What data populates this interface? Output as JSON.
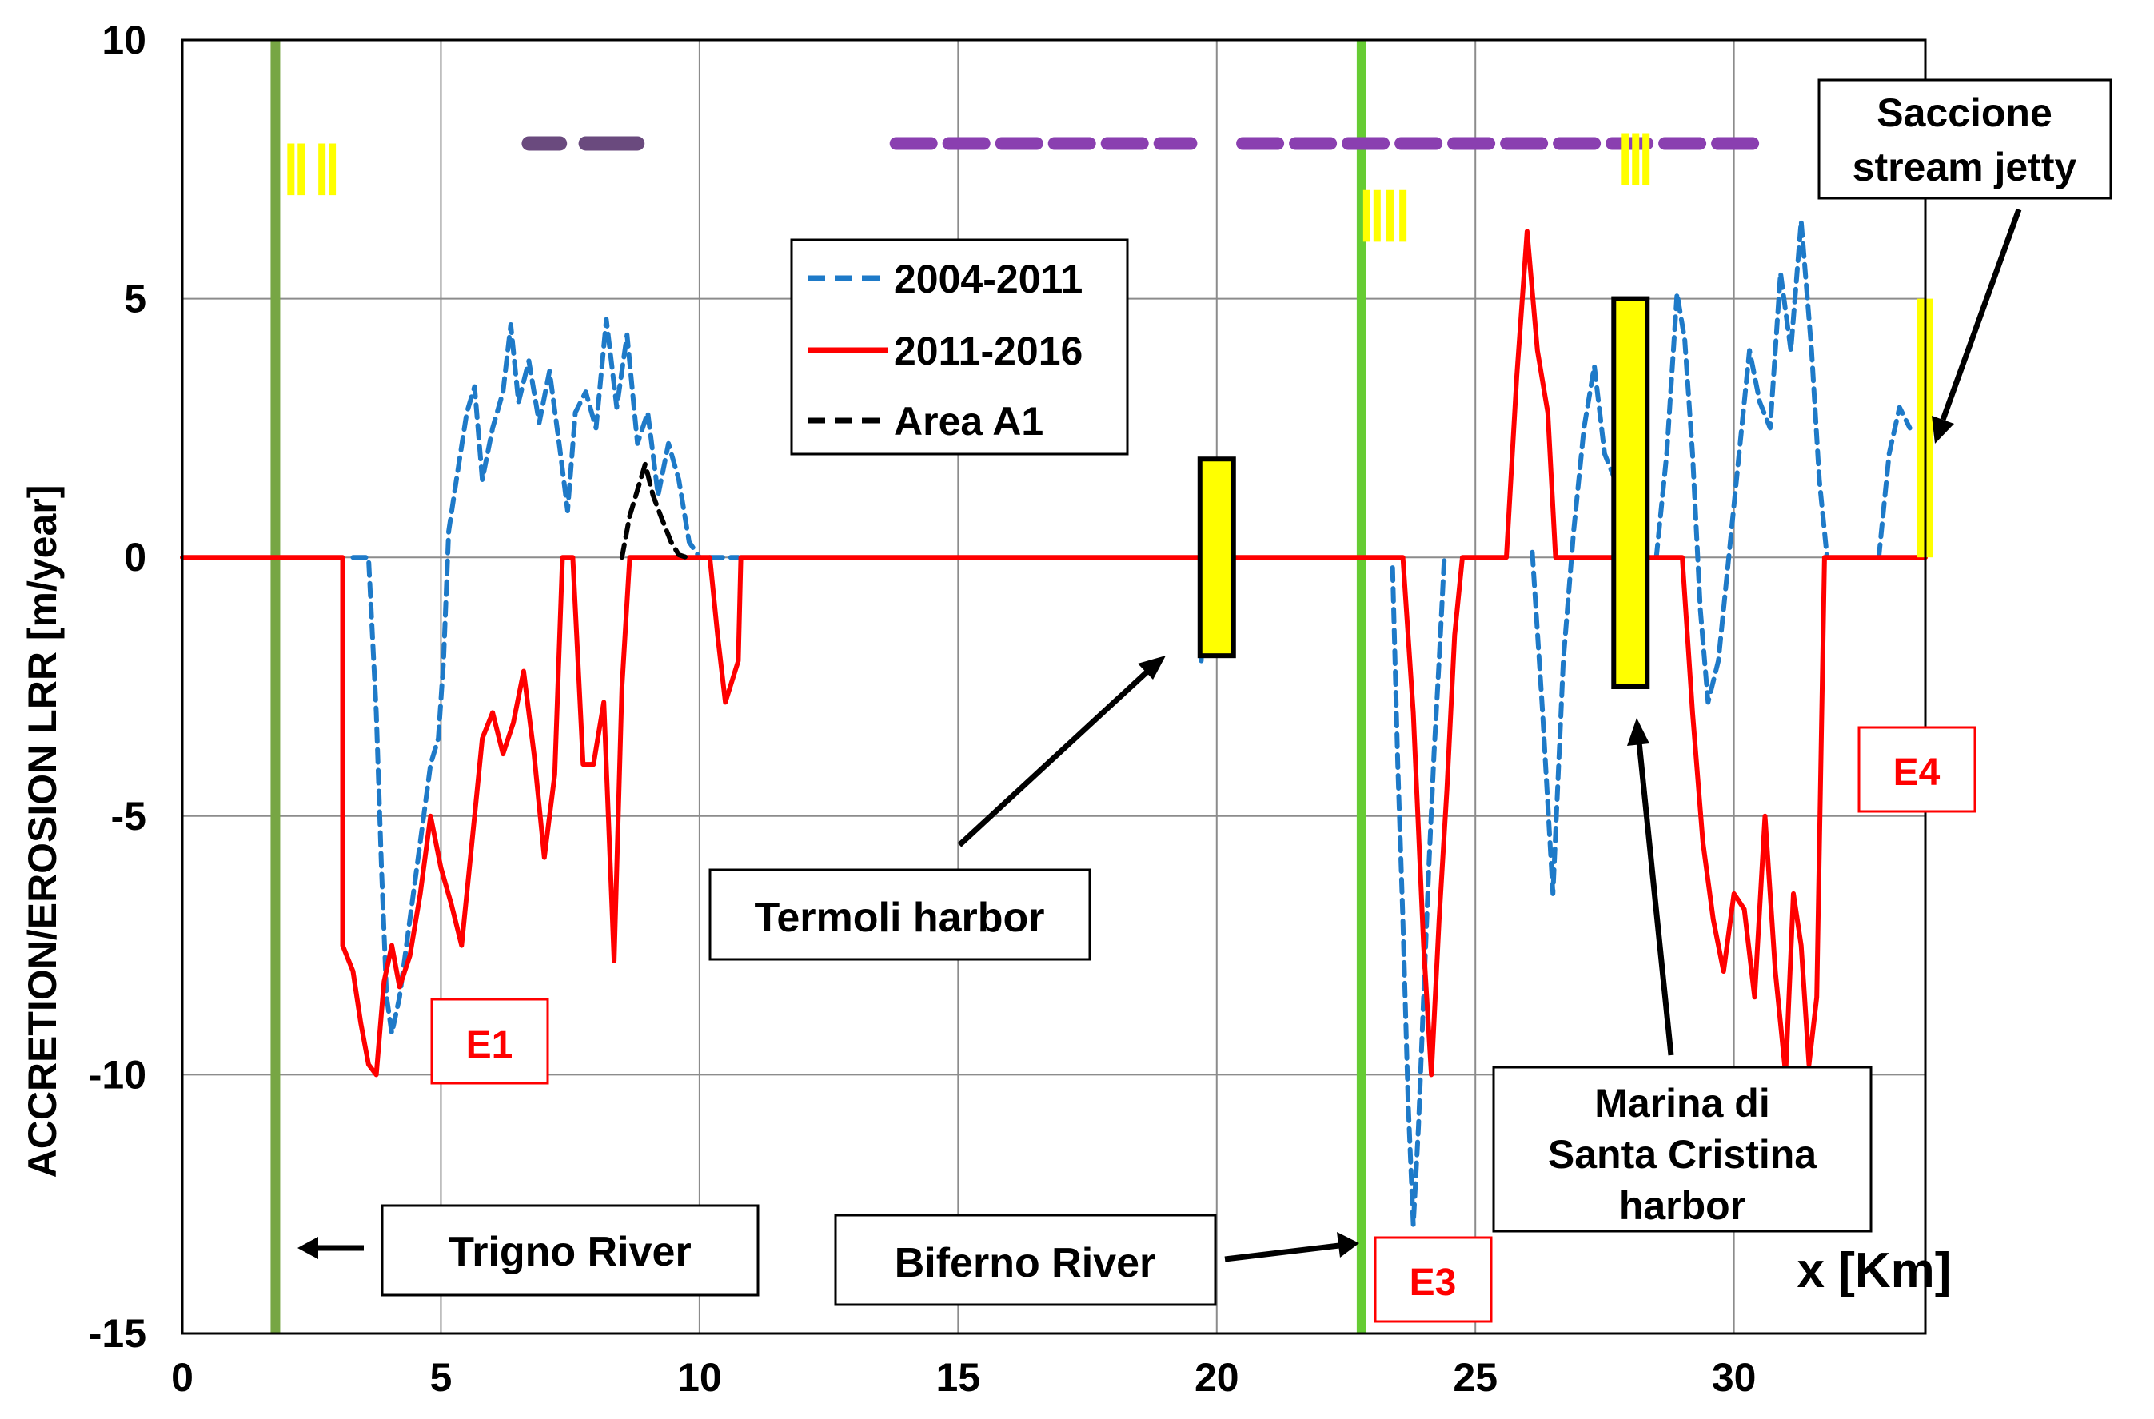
{
  "chart_data": {
    "type": "line",
    "xlabel": "x [Km]",
    "ylabel": "ACCRETION/EROSION LRR [m/year]",
    "xlim": [
      0,
      33.7
    ],
    "ylim": [
      -15,
      10
    ],
    "xticks": [
      "0",
      "5",
      "10",
      "15",
      "20",
      "25",
      "30"
    ],
    "yticks": [
      "10",
      "5",
      "0",
      "-5",
      "-10",
      "-15"
    ],
    "grid": true,
    "legend_position": "top-center",
    "series": [
      {
        "name": "2004-2011",
        "color": "#1e7ac8",
        "dash": "dashed",
        "segments": [
          [
            [
              3.3,
              0.0
            ],
            [
              3.6,
              0.0
            ],
            [
              3.75,
              -3
            ],
            [
              3.85,
              -6
            ],
            [
              3.95,
              -8.5
            ],
            [
              4.05,
              -9.2
            ],
            [
              4.2,
              -8.5
            ],
            [
              4.4,
              -7
            ],
            [
              4.6,
              -5.5
            ],
            [
              4.8,
              -4
            ],
            [
              4.95,
              -3.5
            ],
            [
              5.05,
              -2
            ],
            [
              5.15,
              0.5
            ],
            [
              5.3,
              1.5
            ],
            [
              5.5,
              2.8
            ],
            [
              5.65,
              3.3
            ],
            [
              5.8,
              1.5
            ],
            [
              6.0,
              2.5
            ],
            [
              6.2,
              3.2
            ],
            [
              6.35,
              4.5
            ],
            [
              6.5,
              3
            ],
            [
              6.7,
              3.8
            ],
            [
              6.9,
              2.6
            ],
            [
              7.1,
              3.6
            ],
            [
              7.3,
              2.1
            ],
            [
              7.45,
              0.9
            ],
            [
              7.6,
              2.8
            ],
            [
              7.8,
              3.2
            ],
            [
              8.0,
              2.5
            ],
            [
              8.2,
              4.6
            ],
            [
              8.4,
              2.9
            ],
            [
              8.6,
              4.3
            ],
            [
              8.8,
              2.2
            ],
            [
              9.0,
              2.8
            ],
            [
              9.2,
              1.2
            ],
            [
              9.4,
              2.2
            ],
            [
              9.6,
              1.5
            ],
            [
              9.8,
              0.3
            ],
            [
              10.0,
              0.0
            ]
          ],
          [
            [
              10.2,
              0.0
            ],
            [
              10.75,
              0.0
            ]
          ],
          [
            [
              19.7,
              -2
            ],
            [
              19.75,
              0
            ],
            [
              19.8,
              2
            ]
          ],
          [
            [
              23.4,
              -0.2
            ],
            [
              23.5,
              -4
            ],
            [
              23.6,
              -7
            ],
            [
              23.7,
              -10.5
            ],
            [
              23.8,
              -12.9
            ],
            [
              23.9,
              -11
            ],
            [
              24.0,
              -8.5
            ],
            [
              24.1,
              -6
            ],
            [
              24.2,
              -3.8
            ],
            [
              24.3,
              -2
            ],
            [
              24.4,
              0.0
            ]
          ],
          [
            [
              26.1,
              0.1
            ],
            [
              26.3,
              -3
            ],
            [
              26.5,
              -6.5
            ],
            [
              26.7,
              -2
            ],
            [
              26.9,
              0.5
            ],
            [
              27.1,
              2.5
            ],
            [
              27.3,
              3.7
            ],
            [
              27.5,
              2
            ],
            [
              27.7,
              1.5
            ],
            [
              27.9,
              3
            ]
          ],
          [
            [
              28.0,
              -1
            ]
          ],
          [
            [
              28.5,
              0
            ],
            [
              28.7,
              2
            ],
            [
              28.9,
              5.1
            ],
            [
              29.05,
              4.2
            ],
            [
              29.2,
              2
            ],
            [
              29.35,
              -1
            ],
            [
              29.5,
              -2.8
            ],
            [
              29.7,
              -2
            ],
            [
              29.9,
              0
            ],
            [
              30.1,
              2
            ],
            [
              30.3,
              4
            ],
            [
              30.5,
              3
            ],
            [
              30.7,
              2.5
            ],
            [
              30.9,
              5.5
            ],
            [
              31.1,
              4
            ],
            [
              31.3,
              6.5
            ],
            [
              31.5,
              4
            ],
            [
              31.65,
              1.5
            ],
            [
              31.8,
              0
            ]
          ],
          [
            [
              32.8,
              0
            ],
            [
              33.0,
              2
            ],
            [
              33.2,
              2.9
            ],
            [
              33.4,
              2.5
            ]
          ]
        ]
      },
      {
        "name": "2011-2016",
        "color": "#ff0000",
        "dash": "solid",
        "points": [
          [
            0,
            0
          ],
          [
            3.1,
            0
          ],
          [
            3.1,
            -7.5
          ],
          [
            3.3,
            -8
          ],
          [
            3.45,
            -9
          ],
          [
            3.6,
            -9.8
          ],
          [
            3.75,
            -10
          ],
          [
            3.9,
            -8.2
          ],
          [
            4.05,
            -7.5
          ],
          [
            4.2,
            -8.3
          ],
          [
            4.4,
            -7.7
          ],
          [
            4.6,
            -6.5
          ],
          [
            4.8,
            -5
          ],
          [
            5.0,
            -6
          ],
          [
            5.2,
            -6.7
          ],
          [
            5.4,
            -7.5
          ],
          [
            5.6,
            -5.5
          ],
          [
            5.8,
            -3.5
          ],
          [
            6.0,
            -3
          ],
          [
            6.2,
            -3.8
          ],
          [
            6.4,
            -3.2
          ],
          [
            6.6,
            -2.2
          ],
          [
            6.8,
            -3.8
          ],
          [
            7.0,
            -5.8
          ],
          [
            7.2,
            -4.2
          ],
          [
            7.35,
            0
          ],
          [
            7.55,
            0
          ],
          [
            7.75,
            -4
          ],
          [
            7.95,
            -4
          ],
          [
            8.15,
            -2.8
          ],
          [
            8.35,
            -7.8
          ],
          [
            8.5,
            -2.5
          ],
          [
            8.65,
            0
          ],
          [
            8.8,
            0
          ],
          [
            10.2,
            0
          ],
          [
            10.35,
            -1.5
          ],
          [
            10.5,
            -2.8
          ],
          [
            10.75,
            -2
          ],
          [
            10.8,
            0
          ],
          [
            23.6,
            0
          ],
          [
            23.8,
            -3
          ],
          [
            24.0,
            -7.5
          ],
          [
            24.15,
            -10
          ],
          [
            24.3,
            -7
          ],
          [
            24.45,
            -4.5
          ],
          [
            24.6,
            -1.5
          ],
          [
            24.75,
            0
          ],
          [
            25.6,
            0
          ],
          [
            25.8,
            3.5
          ],
          [
            26.0,
            6.3
          ],
          [
            26.2,
            4
          ],
          [
            26.4,
            2.8
          ],
          [
            26.55,
            0
          ],
          [
            29.0,
            0
          ],
          [
            29.2,
            -3
          ],
          [
            29.4,
            -5.5
          ],
          [
            29.6,
            -7
          ],
          [
            29.8,
            -8
          ],
          [
            30.0,
            -6.5
          ],
          [
            30.2,
            -6.8
          ],
          [
            30.4,
            -8.5
          ],
          [
            30.6,
            -5
          ],
          [
            30.8,
            -8
          ],
          [
            31.0,
            -10
          ],
          [
            31.15,
            -6.5
          ],
          [
            31.3,
            -7.5
          ],
          [
            31.45,
            -9.8
          ],
          [
            31.6,
            -8.5
          ],
          [
            31.75,
            0
          ],
          [
            33.7,
            0
          ]
        ]
      },
      {
        "name": "Area A1",
        "color": "#000000",
        "dash": "dashed",
        "points": [
          [
            8.5,
            0
          ],
          [
            8.65,
            0.8
          ],
          [
            8.8,
            1.3
          ],
          [
            8.95,
            1.8
          ],
          [
            9.1,
            1.2
          ],
          [
            9.25,
            0.8
          ],
          [
            9.45,
            0.3
          ],
          [
            9.6,
            0.05
          ],
          [
            9.75,
            0
          ]
        ]
      }
    ],
    "annotations": {
      "river_lines": [
        {
          "x": 1.8,
          "color": "#77a644"
        },
        {
          "x": 22.8,
          "color": "#66cc33"
        }
      ],
      "harbor_bars": [
        {
          "x": 20.0,
          "y0": -1.9,
          "y1": 1.9
        },
        {
          "x": 28.0,
          "y0": -2.5,
          "y1": 5.0
        }
      ],
      "jetty_bar": {
        "x": 33.7,
        "y0": 0,
        "y1": 5
      },
      "purple_dashes_dark": [
        [
          6.7,
          7.3
        ],
        [
          7.8,
          8.8
        ]
      ],
      "purple_dashes": [
        [
          13.8,
          19.5
        ],
        [
          20.5,
          30.5
        ]
      ],
      "yellow_ticks": [
        {
          "xs": [
            2.1,
            2.3,
            2.7,
            2.9
          ],
          "y0": 7,
          "y1": 8
        },
        {
          "xs": [
            22.9,
            23.1,
            23.35,
            23.6
          ],
          "y0": 6.1,
          "y1": 7.1
        },
        {
          "xs": [
            27.9,
            28.1,
            28.3
          ],
          "y0": 7.2,
          "y1": 8.2
        }
      ]
    },
    "callouts": {
      "trigno": "Trigno River",
      "biferno": "Biferno River",
      "termoli": "Termoli harbor",
      "marina_l1": "Marina di",
      "marina_l2": "Santa Cristina",
      "marina_l3": "harbor",
      "saccione_l1": "Saccione",
      "saccione_l2": "stream jetty",
      "e1": "E1",
      "e3": "E3",
      "e4": "E4"
    }
  }
}
